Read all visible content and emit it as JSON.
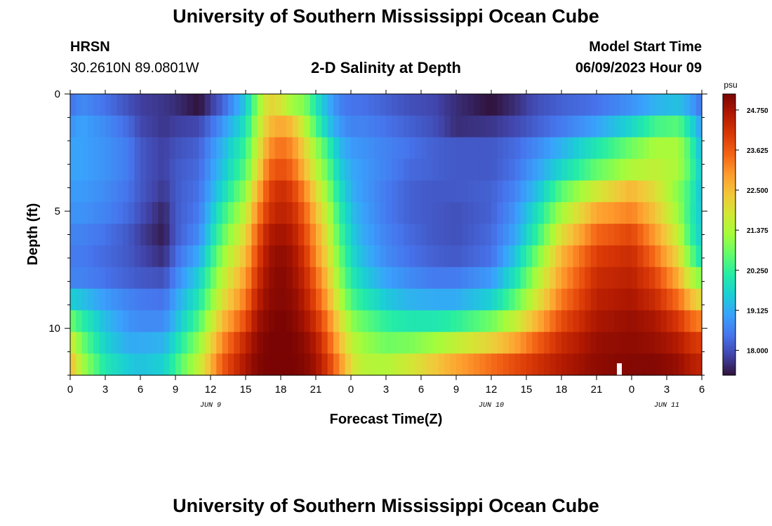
{
  "header": {
    "title": "University of Southern Mississippi Ocean Cube",
    "station": "HRSN",
    "coords": "30.2610N  89.0801W",
    "plot_title": "2-D Salinity at Depth",
    "start_label": "Model Start Time",
    "start_value": "06/09/2023 Hour 09"
  },
  "footer_title": "University of Southern Mississippi Ocean Cube",
  "colormap": [
    "#30123b",
    "#4145ab",
    "#4675ed",
    "#39a2fc",
    "#1bcfd4",
    "#24eca6",
    "#61fc6c",
    "#a4fc3b",
    "#d1e834",
    "#f3c63a",
    "#fe9b2d",
    "#f36315",
    "#d93806",
    "#b11901",
    "#7a0403"
  ],
  "chart_data": {
    "type": "heatmap",
    "title": "2-D Salinity at Depth",
    "xlabel": "Forecast Time(Z)",
    "ylabel": "Depth (ft)",
    "x_range_hours": [
      0,
      54
    ],
    "y_range_ft": [
      0,
      12
    ],
    "x_ticks": [
      {
        "hour": 0,
        "label": "0"
      },
      {
        "hour": 3,
        "label": "3"
      },
      {
        "hour": 6,
        "label": "6"
      },
      {
        "hour": 9,
        "label": "9"
      },
      {
        "hour": 12,
        "label": "12"
      },
      {
        "hour": 15,
        "label": "15"
      },
      {
        "hour": 18,
        "label": "18"
      },
      {
        "hour": 21,
        "label": "21"
      },
      {
        "hour": 24,
        "label": "0"
      },
      {
        "hour": 27,
        "label": "3"
      },
      {
        "hour": 30,
        "label": "6"
      },
      {
        "hour": 33,
        "label": "9"
      },
      {
        "hour": 36,
        "label": "12"
      },
      {
        "hour": 39,
        "label": "15"
      },
      {
        "hour": 42,
        "label": "18"
      },
      {
        "hour": 45,
        "label": "21"
      },
      {
        "hour": 48,
        "label": "0"
      },
      {
        "hour": 51,
        "label": "3"
      },
      {
        "hour": 54,
        "label": "6"
      }
    ],
    "date_labels": [
      {
        "hour": 12,
        "label": "JUN 9"
      },
      {
        "hour": 36,
        "label": "JUN 10"
      },
      {
        "hour": 51,
        "label": "JUN 11"
      }
    ],
    "y_ticks": [
      {
        "depth": 0,
        "label": "0"
      },
      {
        "depth": 5,
        "label": "5"
      },
      {
        "depth": 10,
        "label": "10"
      }
    ],
    "colorbar": {
      "unit": "psu",
      "range": [
        17.3,
        25.2
      ],
      "ticks": [
        "24.750",
        "23.625",
        "22.500",
        "21.375",
        "20.250",
        "19.125",
        "18.000"
      ]
    },
    "rows": [
      {
        "depth": 0,
        "hours": [
          0,
          1,
          3,
          5,
          6,
          8,
          9,
          11,
          13,
          15,
          16,
          17,
          18,
          19,
          20,
          21,
          22,
          23,
          24,
          25,
          27,
          29,
          31,
          33,
          36,
          38,
          40,
          42,
          45,
          48,
          50,
          52,
          53,
          54
        ],
        "values": [
          18.4,
          18.7,
          18.4,
          18.0,
          17.8,
          17.7,
          17.6,
          17.3,
          18.2,
          19.5,
          21.0,
          22.2,
          21.9,
          21.2,
          21.0,
          20.0,
          19.2,
          18.6,
          18.4,
          18.4,
          18.2,
          18.0,
          17.9,
          17.6,
          17.3,
          17.6,
          18.0,
          18.2,
          18.4,
          18.8,
          19.2,
          19.4,
          19.0,
          18.4
        ]
      },
      {
        "depth": 1,
        "hours": [
          0,
          1,
          3,
          5,
          6,
          8,
          9,
          11,
          13,
          15,
          16,
          17,
          18,
          19,
          20,
          21,
          22,
          23,
          24,
          25,
          27,
          29,
          31,
          33,
          36,
          38,
          40,
          42,
          45,
          48,
          50,
          52,
          53,
          54
        ],
        "values": [
          18.8,
          19.0,
          18.7,
          18.3,
          17.9,
          17.7,
          17.8,
          17.9,
          18.8,
          19.9,
          21.4,
          22.5,
          22.8,
          22.5,
          21.6,
          20.5,
          19.5,
          18.9,
          18.6,
          18.6,
          18.4,
          18.2,
          18.0,
          17.6,
          17.7,
          17.9,
          18.2,
          18.5,
          19.0,
          19.7,
          20.4,
          20.6,
          19.8,
          18.9
        ]
      },
      {
        "depth": 2,
        "hours": [
          0,
          1,
          3,
          5,
          6,
          8,
          9,
          11,
          13,
          15,
          16,
          17,
          18,
          19,
          20,
          21,
          22,
          23,
          24,
          25,
          27,
          29,
          31,
          33,
          36,
          38,
          40,
          42,
          45,
          48,
          50,
          52,
          53,
          54
        ],
        "values": [
          19.0,
          19.0,
          18.8,
          18.5,
          18.1,
          17.8,
          18.0,
          18.2,
          19.2,
          20.3,
          21.7,
          23.0,
          23.4,
          23.1,
          22.2,
          21.2,
          20.3,
          19.3,
          18.9,
          18.8,
          18.6,
          18.4,
          18.2,
          18.1,
          18.1,
          18.3,
          18.7,
          19.2,
          20.0,
          20.8,
          21.3,
          21.3,
          20.4,
          19.2
        ]
      },
      {
        "depth": 3,
        "hours": [
          0,
          1,
          3,
          5,
          6,
          8,
          9,
          11,
          13,
          15,
          16,
          17,
          18,
          19,
          20,
          21,
          22,
          23,
          24,
          25,
          27,
          29,
          31,
          33,
          36,
          38,
          40,
          42,
          45,
          48,
          50,
          52,
          53,
          54
        ],
        "values": [
          19.0,
          19.0,
          18.8,
          18.5,
          18.1,
          17.8,
          18.1,
          18.3,
          19.4,
          20.6,
          22.0,
          23.5,
          23.8,
          23.5,
          22.6,
          21.6,
          20.7,
          19.6,
          19.1,
          18.9,
          18.6,
          18.3,
          18.2,
          18.1,
          18.1,
          18.4,
          19.0,
          19.7,
          20.7,
          21.4,
          21.6,
          21.3,
          20.5,
          19.4
        ]
      },
      {
        "depth": 4,
        "hours": [
          0,
          1,
          3,
          5,
          6,
          8,
          9,
          11,
          13,
          15,
          16,
          17,
          18,
          19,
          20,
          21,
          22,
          23,
          24,
          25,
          27,
          29,
          31,
          33,
          36,
          38,
          40,
          42,
          45,
          48,
          50,
          52,
          53,
          54
        ],
        "values": [
          18.9,
          18.9,
          18.7,
          18.4,
          18.1,
          17.7,
          18.1,
          18.4,
          19.7,
          21.1,
          22.6,
          23.9,
          24.3,
          24.0,
          23.2,
          22.1,
          21.1,
          19.9,
          19.2,
          18.9,
          18.5,
          18.2,
          18.1,
          18.1,
          18.2,
          18.6,
          19.4,
          20.6,
          21.8,
          22.6,
          22.0,
          21.0,
          20.3,
          19.3
        ]
      },
      {
        "depth": 5,
        "hours": [
          0,
          1,
          3,
          5,
          6,
          8,
          9,
          11,
          13,
          15,
          16,
          17,
          18,
          19,
          20,
          21,
          22,
          23,
          24,
          25,
          27,
          29,
          31,
          33,
          36,
          38,
          40,
          42,
          45,
          48,
          50,
          52,
          53,
          54
        ],
        "values": [
          18.8,
          18.8,
          18.6,
          18.3,
          18.0,
          17.5,
          18.1,
          18.5,
          20.2,
          21.6,
          23.1,
          24.2,
          24.5,
          24.3,
          23.6,
          22.5,
          21.5,
          20.2,
          19.4,
          19.0,
          18.5,
          18.2,
          18.1,
          18.0,
          18.2,
          18.8,
          19.9,
          21.3,
          22.8,
          23.2,
          22.4,
          21.2,
          20.2,
          19.4
        ]
      },
      {
        "depth": 6,
        "hours": [
          0,
          1,
          3,
          5,
          6,
          8,
          9,
          11,
          13,
          15,
          16,
          17,
          18,
          19,
          20,
          21,
          22,
          23,
          24,
          25,
          27,
          29,
          31,
          33,
          36,
          38,
          40,
          42,
          45,
          48,
          50,
          52,
          53,
          54
        ],
        "values": [
          18.6,
          18.6,
          18.4,
          18.1,
          17.8,
          17.4,
          18.1,
          18.7,
          20.6,
          22.1,
          23.6,
          24.6,
          24.8,
          24.6,
          23.9,
          22.9,
          21.8,
          20.5,
          19.6,
          19.1,
          18.6,
          18.3,
          18.1,
          18.0,
          18.3,
          19.0,
          20.3,
          22.0,
          23.5,
          23.9,
          22.9,
          21.6,
          20.3,
          19.5
        ]
      },
      {
        "depth": 7,
        "hours": [
          0,
          1,
          3,
          5,
          6,
          8,
          9,
          11,
          13,
          15,
          16,
          17,
          18,
          19,
          20,
          21,
          22,
          23,
          24,
          25,
          27,
          29,
          31,
          33,
          36,
          38,
          40,
          42,
          45,
          48,
          50,
          52,
          53,
          54
        ],
        "values": [
          18.5,
          18.5,
          18.3,
          18.1,
          17.9,
          17.6,
          18.3,
          19.1,
          21.1,
          22.5,
          23.9,
          24.8,
          25.0,
          24.8,
          24.2,
          23.1,
          22.1,
          20.8,
          19.8,
          19.3,
          18.7,
          18.4,
          18.2,
          18.1,
          18.4,
          19.4,
          20.9,
          22.6,
          24.0,
          24.3,
          23.4,
          22.1,
          20.8,
          19.8
        ]
      },
      {
        "depth": 8,
        "hours": [
          0,
          1,
          3,
          5,
          6,
          8,
          9,
          11,
          13,
          15,
          16,
          17,
          18,
          19,
          20,
          21,
          22,
          23,
          24,
          25,
          27,
          29,
          31,
          33,
          36,
          38,
          40,
          42,
          45,
          48,
          50,
          52,
          53,
          54
        ],
        "values": [
          18.6,
          18.6,
          18.4,
          18.2,
          18.1,
          18.0,
          18.6,
          19.6,
          21.5,
          22.9,
          24.2,
          24.9,
          25.1,
          24.9,
          24.4,
          23.5,
          22.4,
          21.1,
          20.1,
          19.6,
          19.0,
          18.7,
          18.5,
          18.5,
          18.9,
          19.9,
          21.4,
          22.9,
          24.3,
          24.5,
          23.9,
          22.7,
          21.6,
          20.9
        ]
      },
      {
        "depth": 9,
        "hours": [
          0,
          1,
          3,
          5,
          6,
          8,
          9,
          11,
          13,
          15,
          16,
          17,
          18,
          19,
          20,
          21,
          22,
          23,
          24,
          25,
          27,
          29,
          31,
          33,
          36,
          38,
          40,
          42,
          45,
          48,
          50,
          52,
          53,
          54
        ],
        "values": [
          19.6,
          19.4,
          18.9,
          18.6,
          18.5,
          18.4,
          19.0,
          20.0,
          21.9,
          23.3,
          24.5,
          25.0,
          25.1,
          25.0,
          24.6,
          23.8,
          22.8,
          21.5,
          20.5,
          20.1,
          19.5,
          19.2,
          19.1,
          19.1,
          19.6,
          20.6,
          21.9,
          23.3,
          24.5,
          24.7,
          24.3,
          23.4,
          22.6,
          22.0
        ]
      },
      {
        "depth": 10,
        "hours": [
          0,
          1,
          3,
          5,
          6,
          8,
          9,
          11,
          13,
          15,
          16,
          17,
          18,
          19,
          20,
          21,
          22,
          23,
          24,
          25,
          27,
          29,
          31,
          33,
          36,
          38,
          40,
          42,
          45,
          48,
          50,
          52,
          53,
          54
        ],
        "values": [
          20.8,
          20.2,
          19.3,
          18.8,
          18.7,
          18.7,
          19.3,
          20.5,
          22.5,
          23.8,
          24.8,
          25.1,
          25.2,
          25.1,
          24.8,
          24.2,
          23.3,
          22.1,
          21.1,
          20.7,
          20.2,
          20.0,
          20.0,
          20.2,
          20.8,
          21.6,
          22.7,
          23.8,
          24.7,
          24.9,
          24.7,
          24.1,
          23.5,
          23.2
        ]
      },
      {
        "depth": 11,
        "hours": [
          0,
          1,
          3,
          5,
          6,
          8,
          9,
          11,
          13,
          15,
          16,
          17,
          18,
          19,
          20,
          21,
          22,
          23,
          24,
          25,
          27,
          29,
          31,
          33,
          36,
          38,
          40,
          42,
          45,
          48,
          50,
          52,
          53,
          54
        ],
        "values": [
          21.9,
          20.8,
          19.6,
          19.1,
          19.1,
          19.2,
          19.8,
          21.1,
          23.1,
          24.4,
          25.0,
          25.2,
          25.2,
          25.2,
          25.0,
          24.6,
          23.7,
          22.6,
          21.6,
          21.2,
          20.8,
          20.9,
          21.2,
          21.6,
          22.2,
          22.8,
          23.6,
          24.3,
          24.9,
          25.0,
          24.9,
          24.6,
          24.2,
          24.0
        ]
      },
      {
        "depth": 12,
        "hours": [
          0,
          1,
          3,
          5,
          6,
          8,
          9,
          11,
          13,
          15,
          16,
          17,
          18,
          19,
          20,
          21,
          22,
          23,
          24,
          25,
          27,
          29,
          31,
          33,
          36,
          38,
          40,
          42,
          45,
          48,
          50,
          52,
          53,
          54
        ],
        "values": [
          22.6,
          21.3,
          20.0,
          19.5,
          19.4,
          19.6,
          20.3,
          21.6,
          23.6,
          24.7,
          25.1,
          25.2,
          25.2,
          25.2,
          25.1,
          24.8,
          24.1,
          23.1,
          22.0,
          21.5,
          21.4,
          21.8,
          22.3,
          22.8,
          23.4,
          23.8,
          24.2,
          24.6,
          25.0,
          25.1,
          25.1,
          24.9,
          24.6,
          24.4
        ]
      }
    ]
  }
}
